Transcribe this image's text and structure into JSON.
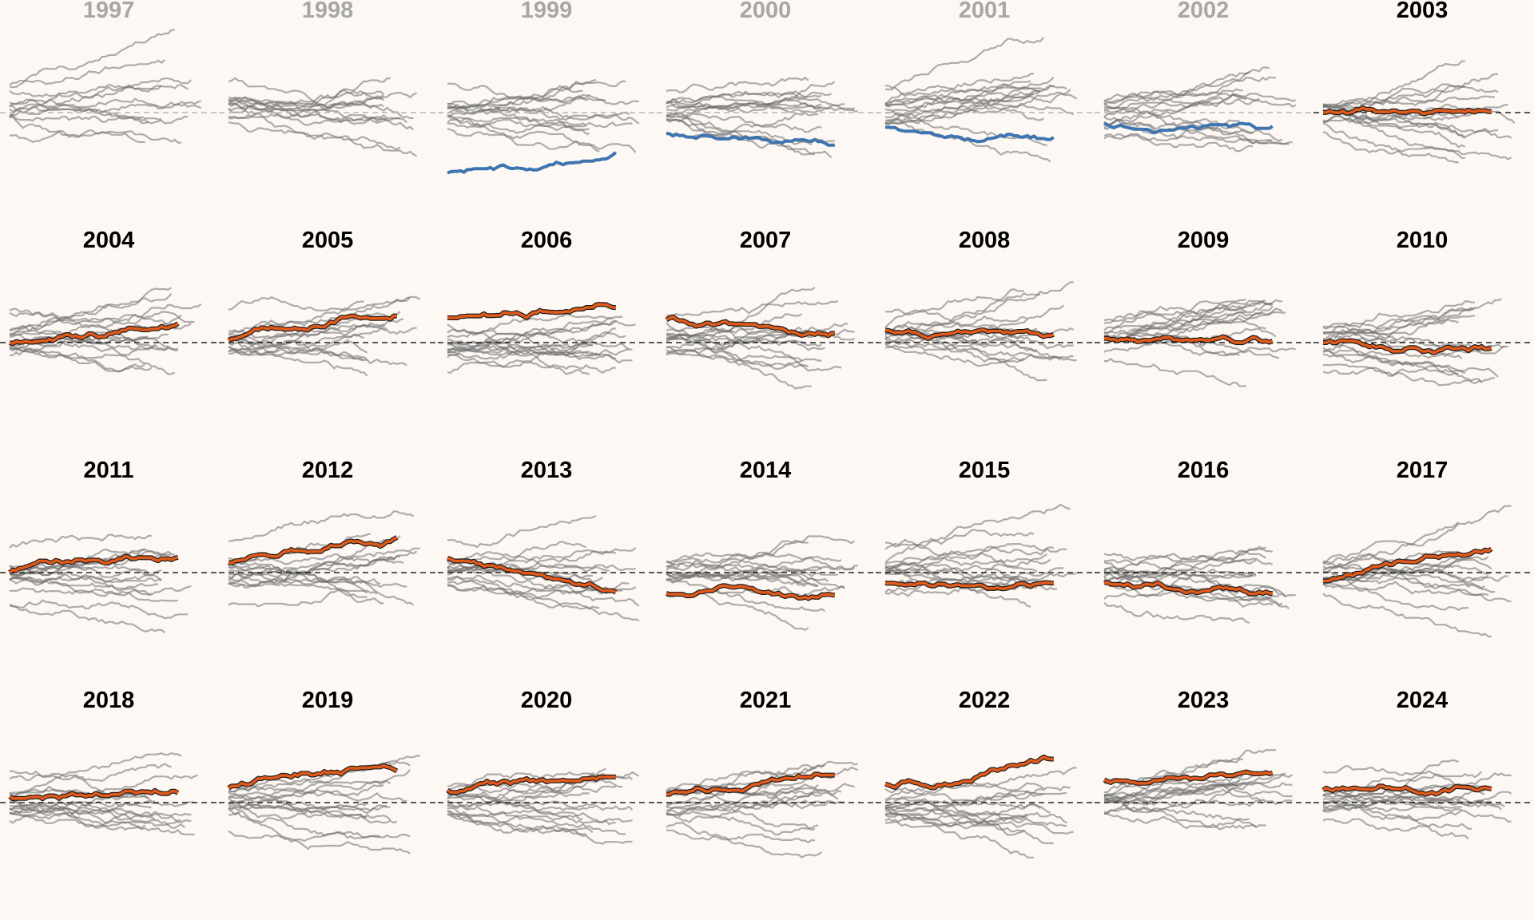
{
  "chart_data": {
    "type": "line",
    "title": "",
    "xlabel": "",
    "ylabel": "",
    "reference_line": {
      "y": 0,
      "style": "dashed"
    },
    "colors": {
      "background": "#fdf8f3",
      "background_series": "#6e6e6e",
      "highlight_blue": "#3e74b0",
      "highlight_orange": "#e05a1c",
      "highlight_outline": "#1a1a1a",
      "faded_title": "#a7a7a7",
      "active_title": "#000000"
    },
    "panels": [
      {
        "label": "1997",
        "title_style": "faded",
        "highlight": null,
        "series_count": 12,
        "highlight_start": 0,
        "highlight_trend": 0
      },
      {
        "label": "1998",
        "title_style": "faded",
        "highlight": null,
        "series_count": 13,
        "highlight_start": 0,
        "highlight_trend": 0
      },
      {
        "label": "1999",
        "title_style": "faded",
        "highlight": "blue",
        "series_count": 14,
        "highlight_start": -1.45,
        "highlight_trend": 0.45
      },
      {
        "label": "2000",
        "title_style": "faded",
        "highlight": "blue",
        "series_count": 15,
        "highlight_start": -0.5,
        "highlight_trend": -0.25
      },
      {
        "label": "2001",
        "title_style": "faded",
        "highlight": "blue",
        "series_count": 15,
        "highlight_start": -0.35,
        "highlight_trend": -0.2
      },
      {
        "label": "2002",
        "title_style": "faded",
        "highlight": "blue",
        "series_count": 15,
        "highlight_start": -0.25,
        "highlight_trend": 0.1
      },
      {
        "label": "2003",
        "title_style": "active",
        "highlight": "orange",
        "series_count": 15,
        "highlight_start": 0.0,
        "highlight_trend": -0.05
      },
      {
        "label": "2004",
        "title_style": "active",
        "highlight": "orange",
        "series_count": 15,
        "highlight_start": 0.0,
        "highlight_trend": 0.25
      },
      {
        "label": "2005",
        "title_style": "active",
        "highlight": "orange",
        "series_count": 14,
        "highlight_start": 0.05,
        "highlight_trend": 1.1
      },
      {
        "label": "2006",
        "title_style": "active",
        "highlight": "orange",
        "series_count": 15,
        "highlight_start": 0.6,
        "highlight_trend": 0.5
      },
      {
        "label": "2007",
        "title_style": "active",
        "highlight": "orange",
        "series_count": 15,
        "highlight_start": 0.55,
        "highlight_trend": -0.1
      },
      {
        "label": "2008",
        "title_style": "active",
        "highlight": "orange",
        "series_count": 15,
        "highlight_start": 0.3,
        "highlight_trend": 0.2
      },
      {
        "label": "2009",
        "title_style": "active",
        "highlight": "orange",
        "series_count": 15,
        "highlight_start": 0.1,
        "highlight_trend": -0.2
      },
      {
        "label": "2010",
        "title_style": "active",
        "highlight": "orange",
        "series_count": 15,
        "highlight_start": 0.0,
        "highlight_trend": 0.0
      },
      {
        "label": "2011",
        "title_style": "active",
        "highlight": "orange",
        "series_count": 15,
        "highlight_start": 0.0,
        "highlight_trend": 0.4
      },
      {
        "label": "2012",
        "title_style": "active",
        "highlight": "orange",
        "series_count": 15,
        "highlight_start": 0.25,
        "highlight_trend": 0.6
      },
      {
        "label": "2013",
        "title_style": "active",
        "highlight": "orange",
        "series_count": 15,
        "highlight_start": 0.35,
        "highlight_trend": -0.8
      },
      {
        "label": "2014",
        "title_style": "active",
        "highlight": "orange",
        "series_count": 15,
        "highlight_start": -0.5,
        "highlight_trend": 0.0
      },
      {
        "label": "2015",
        "title_style": "active",
        "highlight": "orange",
        "series_count": 15,
        "highlight_start": -0.25,
        "highlight_trend": -0.3
      },
      {
        "label": "2016",
        "title_style": "active",
        "highlight": "orange",
        "series_count": 15,
        "highlight_start": -0.25,
        "highlight_trend": -0.1
      },
      {
        "label": "2017",
        "title_style": "active",
        "highlight": "orange",
        "series_count": 15,
        "highlight_start": -0.2,
        "highlight_trend": 0.65
      },
      {
        "label": "2018",
        "title_style": "active",
        "highlight": "orange",
        "series_count": 15,
        "highlight_start": 0.15,
        "highlight_trend": 0.2
      },
      {
        "label": "2019",
        "title_style": "active",
        "highlight": "orange",
        "series_count": 15,
        "highlight_start": 0.35,
        "highlight_trend": 0.4
      },
      {
        "label": "2020",
        "title_style": "active",
        "highlight": "orange",
        "series_count": 15,
        "highlight_start": 0.3,
        "highlight_trend": 0.0
      },
      {
        "label": "2021",
        "title_style": "active",
        "highlight": "orange",
        "series_count": 15,
        "highlight_start": 0.2,
        "highlight_trend": 1.0
      },
      {
        "label": "2022",
        "title_style": "active",
        "highlight": "orange",
        "series_count": 15,
        "highlight_start": 0.45,
        "highlight_trend": 0.9
      },
      {
        "label": "2023",
        "title_style": "active",
        "highlight": "orange",
        "series_count": 15,
        "highlight_start": 0.55,
        "highlight_trend": 0.2
      },
      {
        "label": "2024",
        "title_style": "active",
        "highlight": "orange",
        "series_count": 15,
        "highlight_start": 0.3,
        "highlight_trend": 0.55
      }
    ]
  }
}
